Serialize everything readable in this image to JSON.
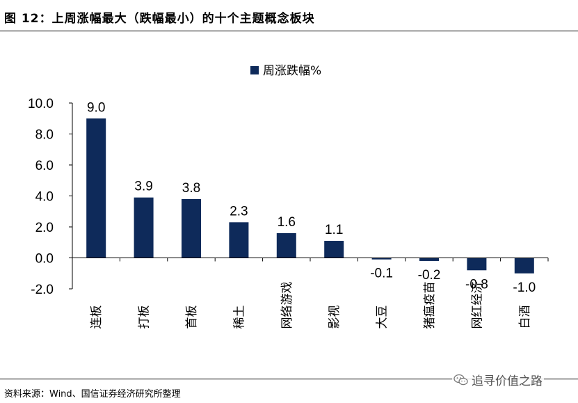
{
  "figure": {
    "title": "图  12：上周涨幅最大（跌幅最小）的十个主题概念板块",
    "source": "资料来源：Wind、国信证券经济研究所整理",
    "watermark": "追寻价值之路",
    "watermark_icon": "wechat-icon"
  },
  "colors": {
    "bar": "#0e2a5a",
    "axis": "#000000"
  },
  "chart_data": {
    "type": "bar",
    "legend": {
      "label": "周涨跌幅%",
      "position": "top-center"
    },
    "categories": [
      "连板",
      "打板",
      "首板",
      "稀土",
      "网络游戏",
      "影视",
      "大豆",
      "猪瘟疫苗",
      "网红经济",
      "白酒"
    ],
    "series": [
      {
        "name": "周涨跌幅%",
        "values": [
          9.0,
          3.9,
          3.8,
          2.3,
          1.6,
          1.1,
          -0.1,
          -0.2,
          -0.8,
          -1.0
        ]
      }
    ],
    "data_labels": [
      "9.0",
      "3.9",
      "3.8",
      "2.3",
      "1.6",
      "1.1",
      "-0.1",
      "-0.2",
      "-0.8",
      "-1.0"
    ],
    "y_ticks": [
      "10.0",
      "8.0",
      "6.0",
      "4.0",
      "2.0",
      "0.0",
      "-2.0"
    ],
    "ylim": [
      -2.0,
      10.0
    ],
    "grid": false
  }
}
